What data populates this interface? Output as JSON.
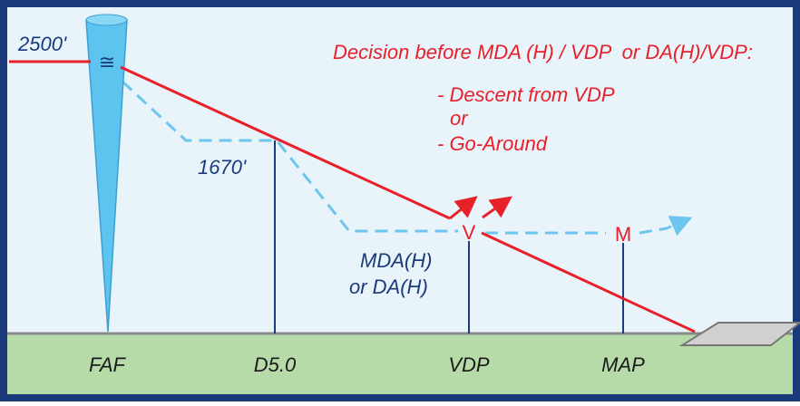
{
  "altitude_labels": {
    "faf": "2500'",
    "step": "1670'",
    "minimum": [
      "MDA(H)",
      "or DA(H)"
    ]
  },
  "symbols": {
    "cone": "≅",
    "vdp": "V",
    "map": "M"
  },
  "note": {
    "title": "Decision before MDA (H) / VDP  or DA(H)/VDP:",
    "lines": [
      "- Descent from VDP",
      "or",
      "- Go-Around"
    ]
  },
  "points": [
    "FAF",
    "D5.0",
    "VDP",
    "MAP"
  ]
}
